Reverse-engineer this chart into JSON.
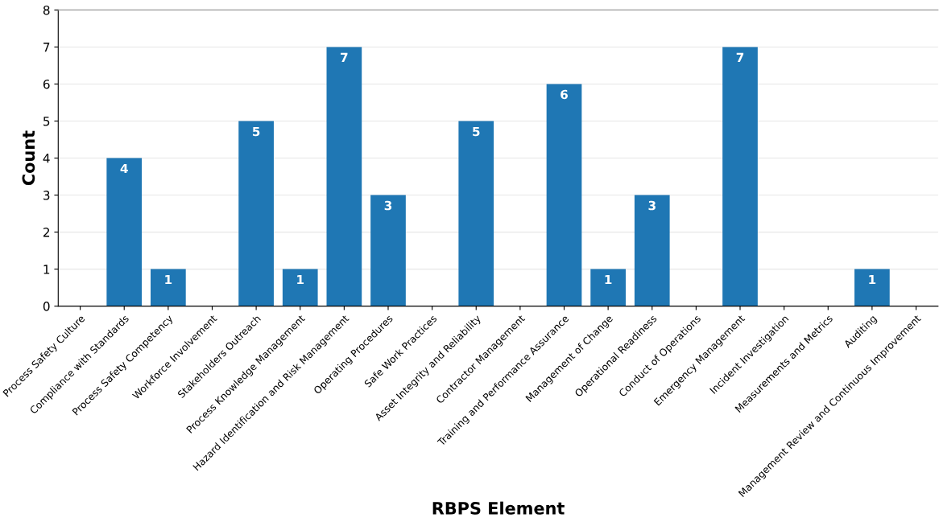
{
  "chart_data": {
    "type": "bar",
    "xlabel": "RBPS Element",
    "ylabel": "Count",
    "categories": [
      "Process Safety Culture",
      "Compliance with Standards",
      "Process Safety Competency",
      "Workforce Involvement",
      "Stakeholders Outreach",
      "Process Knowledge Management",
      "Hazard Identification and Risk Management",
      "Operating Procedures",
      "Safe Work Practices",
      "Asset Integrity and Reliability",
      "Contractor Management",
      "Training and Performance Assurance",
      "Management of Change",
      "Operational Readiness",
      "Conduct of Operations",
      "Emergency Management",
      "Incident Investigation",
      "Measurements and Metrics",
      "Auditing",
      "Management Review and Continuous Improvement"
    ],
    "values": [
      0,
      4,
      1,
      0,
      5,
      1,
      7,
      3,
      0,
      5,
      0,
      6,
      1,
      3,
      0,
      7,
      0,
      0,
      1,
      0
    ],
    "value_labels": [
      null,
      "4",
      "1",
      null,
      "5",
      "1",
      "7",
      "3",
      null,
      "5",
      null,
      "6",
      "1",
      "3",
      null,
      "7",
      null,
      null,
      "1",
      null
    ],
    "color": "#1f77b4",
    "ylim": [
      0,
      8
    ],
    "yticks": [
      0,
      1,
      2,
      3,
      4,
      5,
      6,
      7,
      8
    ],
    "grid": "y"
  }
}
